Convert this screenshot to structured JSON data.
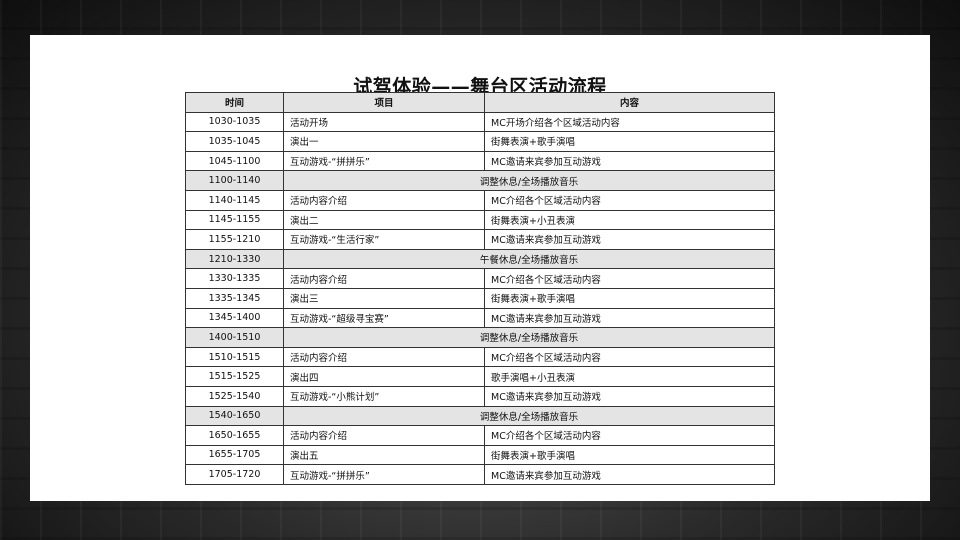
{
  "title": "试驾体验——舞台区活动流程",
  "table": {
    "headers": [
      "时间",
      "项目",
      "内容"
    ],
    "rows": [
      {
        "time": "1030-1035",
        "item": "活动开场",
        "content": "MC开场介绍各个区域活动内容"
      },
      {
        "time": "1035-1045",
        "item": "演出一",
        "content": "街舞表演+歌手演唱"
      },
      {
        "time": "1045-1100",
        "item": "互动游戏-“拼拼乐”",
        "content": "MC邀请来宾参加互动游戏"
      },
      {
        "time": "1100-1140",
        "merged": "调整休息/全场播放音乐"
      },
      {
        "time": "1140-1145",
        "item": "活动内容介绍",
        "content": "MC介绍各个区域活动内容"
      },
      {
        "time": "1145-1155",
        "item": "演出二",
        "content": "街舞表演+小丑表演"
      },
      {
        "time": "1155-1210",
        "item": "互动游戏-“生活行家”",
        "content": "MC邀请来宾参加互动游戏"
      },
      {
        "time": "1210-1330",
        "merged": "午餐休息/全场播放音乐"
      },
      {
        "time": "1330-1335",
        "item": "活动内容介绍",
        "content": "MC介绍各个区域活动内容"
      },
      {
        "time": "1335-1345",
        "item": "演出三",
        "content": "街舞表演+歌手演唱"
      },
      {
        "time": "1345-1400",
        "item": "互动游戏-“超级寻宝赛”",
        "content": "MC邀请来宾参加互动游戏"
      },
      {
        "time": "1400-1510",
        "merged": "调整休息/全场播放音乐"
      },
      {
        "time": "1510-1515",
        "item": "活动内容介绍",
        "content": "MC介绍各个区域活动内容"
      },
      {
        "time": "1515-1525",
        "item": "演出四",
        "content": "歌手演唱+小丑表演"
      },
      {
        "time": "1525-1540",
        "item": "互动游戏-“小熊计划”",
        "content": "MC邀请来宾参加互动游戏"
      },
      {
        "time": "1540-1650",
        "merged": "调整休息/全场播放音乐"
      },
      {
        "time": "1650-1655",
        "item": "活动内容介绍",
        "content": "MC介绍各个区域活动内容"
      },
      {
        "time": "1655-1705",
        "item": "演出五",
        "content": "街舞表演+歌手演唱"
      },
      {
        "time": "1705-1720",
        "item": "互动游戏-“拼拼乐”",
        "content": "MC邀请来宾参加互动游戏"
      }
    ]
  }
}
